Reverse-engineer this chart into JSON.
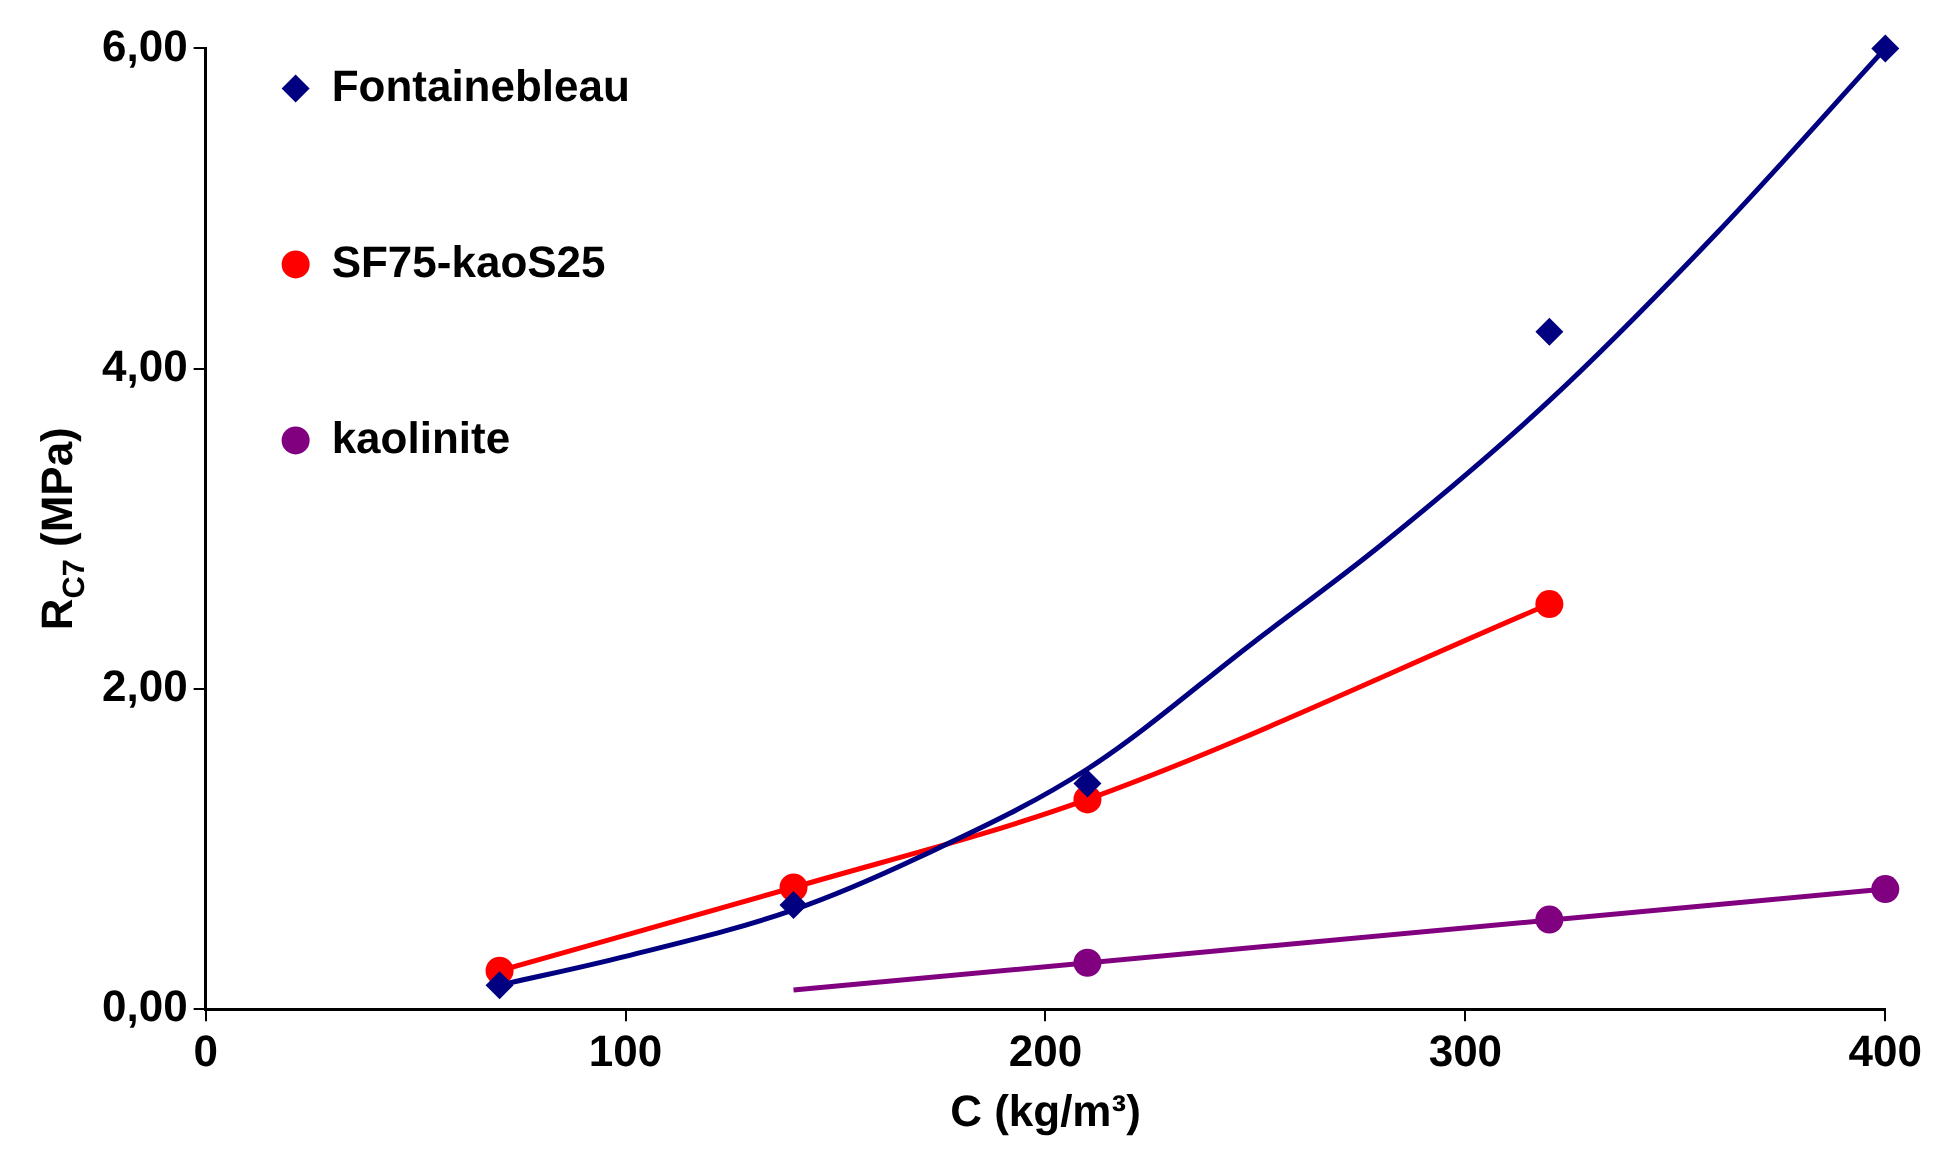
{
  "chart_data": {
    "type": "scatter",
    "xlabel": "C (kg/m³)",
    "ylabel": "R$_{C7}$ (MPa)",
    "xlim": [
      0,
      400
    ],
    "xticks": [
      0,
      100,
      200,
      300,
      400
    ],
    "ylim": [
      0,
      6
    ],
    "yticks": [
      {
        "value": 0,
        "label": "0,00"
      },
      {
        "value": 2,
        "label": "2,00"
      },
      {
        "value": 4,
        "label": "4,00"
      },
      {
        "value": 6,
        "label": "6,00"
      }
    ],
    "grid": false,
    "legend": "top left",
    "series": [
      {
        "name": "Fontainebleau",
        "type": "scatter",
        "marker": "diamond",
        "color": "#000080",
        "x": [
          70,
          140,
          210,
          320,
          400
        ],
        "values": [
          0.15,
          0.65,
          1.41,
          4.23,
          6.0
        ]
      },
      {
        "name": "SF75-kaoS25",
        "type": "scatter",
        "marker": "circle",
        "color": "#ff0000",
        "x": [
          70,
          140,
          210,
          320
        ],
        "values": [
          0.24,
          0.76,
          1.31,
          2.53
        ]
      },
      {
        "name": "kaolinite",
        "type": "scatter",
        "marker": "circle",
        "color": "#800080",
        "x": [
          210,
          320,
          400
        ],
        "values": [
          0.29,
          0.56,
          0.75
        ]
      },
      {
        "type": "line",
        "marker": "none",
        "color": "#000080",
        "x": [
          70,
          100,
          140,
          170,
          210,
          250,
          280,
          320,
          360,
          400
        ],
        "values": [
          0.15,
          0.33,
          0.62,
          0.95,
          1.5,
          2.3,
          2.9,
          3.8,
          4.85,
          6.0
        ]
      },
      {
        "type": "line",
        "marker": "none",
        "color": "#ff0000",
        "x": [
          70,
          140,
          210,
          320
        ],
        "values": [
          0.24,
          0.76,
          1.31,
          2.53
        ]
      },
      {
        "type": "line",
        "marker": "none",
        "color": "#800080",
        "x": [
          140,
          400
        ],
        "values": [
          0.12,
          0.75
        ]
      }
    ]
  }
}
